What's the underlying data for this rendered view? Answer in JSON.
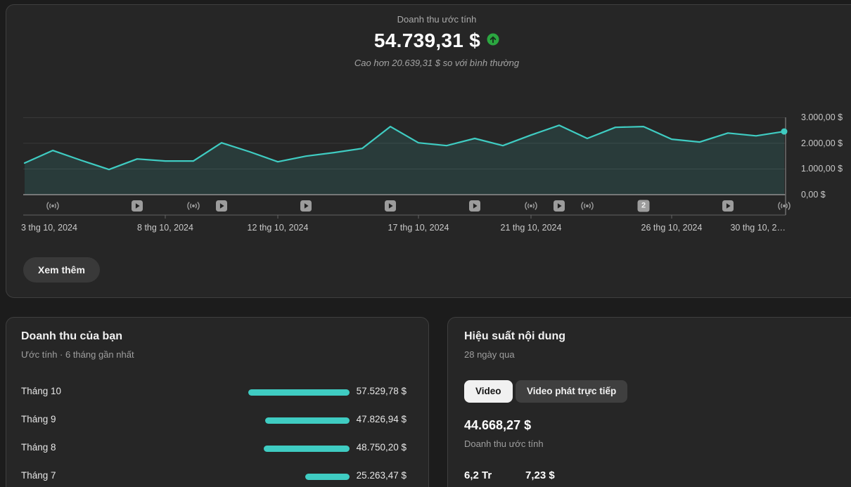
{
  "page": {
    "background": "#1c1c1c",
    "card_background": "#262626",
    "card_border": "#3f3f3f",
    "accent_teal": "#3fccc2",
    "accent_green": "#2ba640"
  },
  "summary": {
    "title": "Doanh thu ước tính",
    "value": "54.739,31 $",
    "trend_icon": "arrow-up-circle-green",
    "note": "Cao hơn 20.639,31 $ so với bình thường",
    "see_more_label": "Xem thêm"
  },
  "chart_data": [
    {
      "id": "daily_estimated_revenue",
      "type": "area",
      "title": "Doanh thu ước tính",
      "month": "thg 10, 2024",
      "days": [
        3,
        4,
        5,
        6,
        7,
        8,
        9,
        10,
        11,
        12,
        13,
        14,
        15,
        16,
        17,
        18,
        19,
        20,
        21,
        22,
        23,
        24,
        25,
        26,
        27,
        28,
        29,
        30
      ],
      "values": [
        1230,
        1720,
        1340,
        980,
        1390,
        1310,
        1310,
        2020,
        1670,
        1280,
        1500,
        1640,
        1800,
        2650,
        2020,
        1910,
        2190,
        1910,
        2320,
        2700,
        2190,
        2620,
        2650,
        2160,
        2050,
        2400,
        2290,
        2460
      ],
      "unit": "$",
      "ylim": [
        0,
        3000
      ],
      "yticks": [
        0,
        1000,
        2000,
        3000
      ],
      "ytick_labels": [
        "0,00 $",
        "1.000,00 $",
        "2.000,00 $",
        "3.000,00 $"
      ],
      "grid": true,
      "legend": false,
      "line_color": "#3fccc2",
      "fill_color": "rgba(63,204,194,0.13)",
      "end_point_marker": true,
      "xticks": [
        {
          "label": "3 thg 10, 2024",
          "index": 0,
          "align": "left"
        },
        {
          "label": "8 thg 10, 2024",
          "index": 5,
          "align": "center"
        },
        {
          "label": "12 thg 10, 2024",
          "index": 9,
          "align": "center"
        },
        {
          "label": "17 thg 10, 2024",
          "index": 14,
          "align": "center"
        },
        {
          "label": "21 thg 10, 2024",
          "index": 18,
          "align": "center"
        },
        {
          "label": "26 thg 10, 2024",
          "index": 23,
          "align": "center"
        },
        {
          "label": "30 thg 10, 2…",
          "index": 27,
          "align": "right"
        }
      ],
      "markers": [
        {
          "type": "live",
          "index": 1
        },
        {
          "type": "video",
          "index": 4
        },
        {
          "type": "live",
          "index": 6
        },
        {
          "type": "video",
          "index": 7
        },
        {
          "type": "video",
          "index": 10
        },
        {
          "type": "video",
          "index": 13
        },
        {
          "type": "video",
          "index": 16
        },
        {
          "type": "live",
          "index": 18
        },
        {
          "type": "video",
          "index": 19
        },
        {
          "type": "live",
          "index": 20
        },
        {
          "type": "count",
          "label": "2",
          "index": 22
        },
        {
          "type": "video",
          "index": 25
        },
        {
          "type": "live",
          "index": 27
        }
      ]
    },
    {
      "id": "monthly_revenue",
      "type": "bar",
      "orientation": "horizontal_right_aligned",
      "categories": [
        "Tháng 10",
        "Tháng 9",
        "Tháng 8",
        "Tháng 7"
      ],
      "values": [
        57529.78,
        47826.94,
        48750.2,
        25263.47
      ],
      "value_labels": [
        "57.529,78 $",
        "47.826,94 $",
        "48.750,20 $",
        "25.263,47 $"
      ],
      "bar_color": "#3fccc2"
    }
  ],
  "revenue_card": {
    "title": "Doanh thu của bạn",
    "subtitle": "Ước tính · 6 tháng gần nhất"
  },
  "content_card": {
    "title": "Hiệu suất nội dung",
    "subtitle": "28 ngày qua",
    "tabs": [
      {
        "label": "Video",
        "selected": true
      },
      {
        "label": "Video phát trực tiếp",
        "selected": false
      }
    ],
    "primary_metric": {
      "value": "44.668,27 $",
      "label": "Doanh thu ước tính"
    },
    "secondary_metrics": [
      {
        "value": "6,2 Tr"
      },
      {
        "value": "7,23 $"
      }
    ]
  }
}
